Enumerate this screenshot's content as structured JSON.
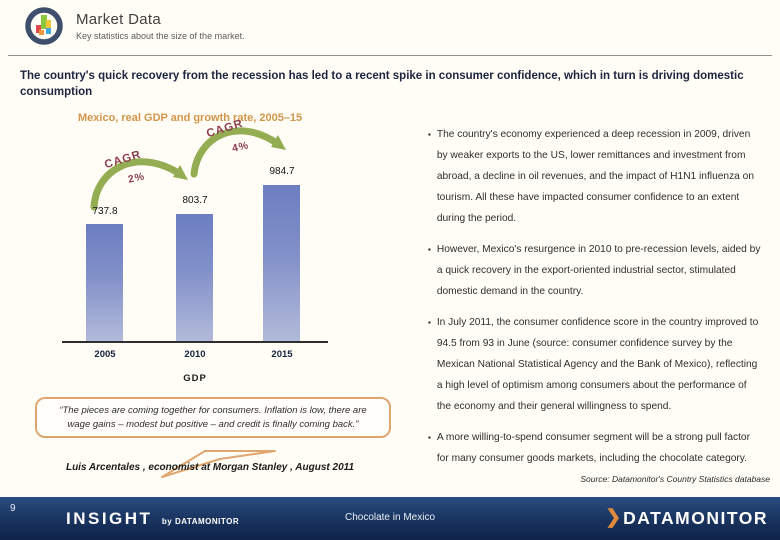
{
  "slide": {
    "header": {
      "title": "Market Data",
      "subtitle": "Key statistics about the size of the market."
    },
    "headline": "The country's quick recovery from the recession has led to a recent spike in consumer confidence, which in turn is driving domestic consumption",
    "bullets": [
      "The country's economy experienced a deep recession in 2009, driven by weaker exports to the US, lower remittances and investment from abroad, a decline in oil revenues, and the impact of H1N1 influenza on tourism. All these have impacted consumer confidence to an extent during the period.",
      "However, Mexico's resurgence in 2010 to pre-recession levels, aided by a quick recovery in the export-oriented industrial sector, stimulated domestic demand in the country.",
      "In July 2011, the consumer confidence score in the country improved to 94.5 from 93 in June (source: consumer confidence survey by the Mexican National Statistical Agency and the Bank of Mexico), reflecting a high level of optimism among consumers about the performance of the economy and their general willingness to spend.",
      "A more willing-to-spend consumer segment will be a strong pull factor for many consumer goods markets, including the chocolate category."
    ],
    "quote": {
      "text": "“The pieces are coming together for consumers. Inflation is low, there are wage gains – modest but positive – and credit is finally coming back.”",
      "attribution": "Luis Arcentales , economist at Morgan Stanley , August 2011"
    },
    "source": "Source: Datamonitor's Country Statistics database",
    "footer": {
      "page_number": "9",
      "brand": "INSIGHT",
      "brand_suffix": "by DATAMONITOR",
      "report_title": "Chocolate in Mexico",
      "logo_text": "DATAMONITOR"
    }
  },
  "chart_data": {
    "type": "bar",
    "title": "Mexico, real GDP and growth rate, 2005–15",
    "categories": [
      "2005",
      "2010",
      "2015"
    ],
    "values": [
      737.8,
      803.7,
      984.7
    ],
    "value_labels": [
      "737.8",
      "803.7",
      "984.7"
    ],
    "legend": [
      "GDP"
    ],
    "annotations": [
      {
        "label": "CAGR",
        "value": "2%",
        "span": "2005-2010"
      },
      {
        "label": "CAGR",
        "value": "4%",
        "span": "2010-2015"
      }
    ],
    "ylim": [
      0,
      1050
    ],
    "grid": false,
    "legend_position": "bottom",
    "bar_color": "#7484c4"
  },
  "colors": {
    "accent_orange": "#d2964a",
    "bar_blue": "#7484c4",
    "arrow_green": "#94ad52",
    "cagr_maroon": "#8d3f4f",
    "footer_navy": "#1a3560",
    "quote_border": "#dfa76f",
    "logo_chevron_orange": "#e08a3c"
  }
}
